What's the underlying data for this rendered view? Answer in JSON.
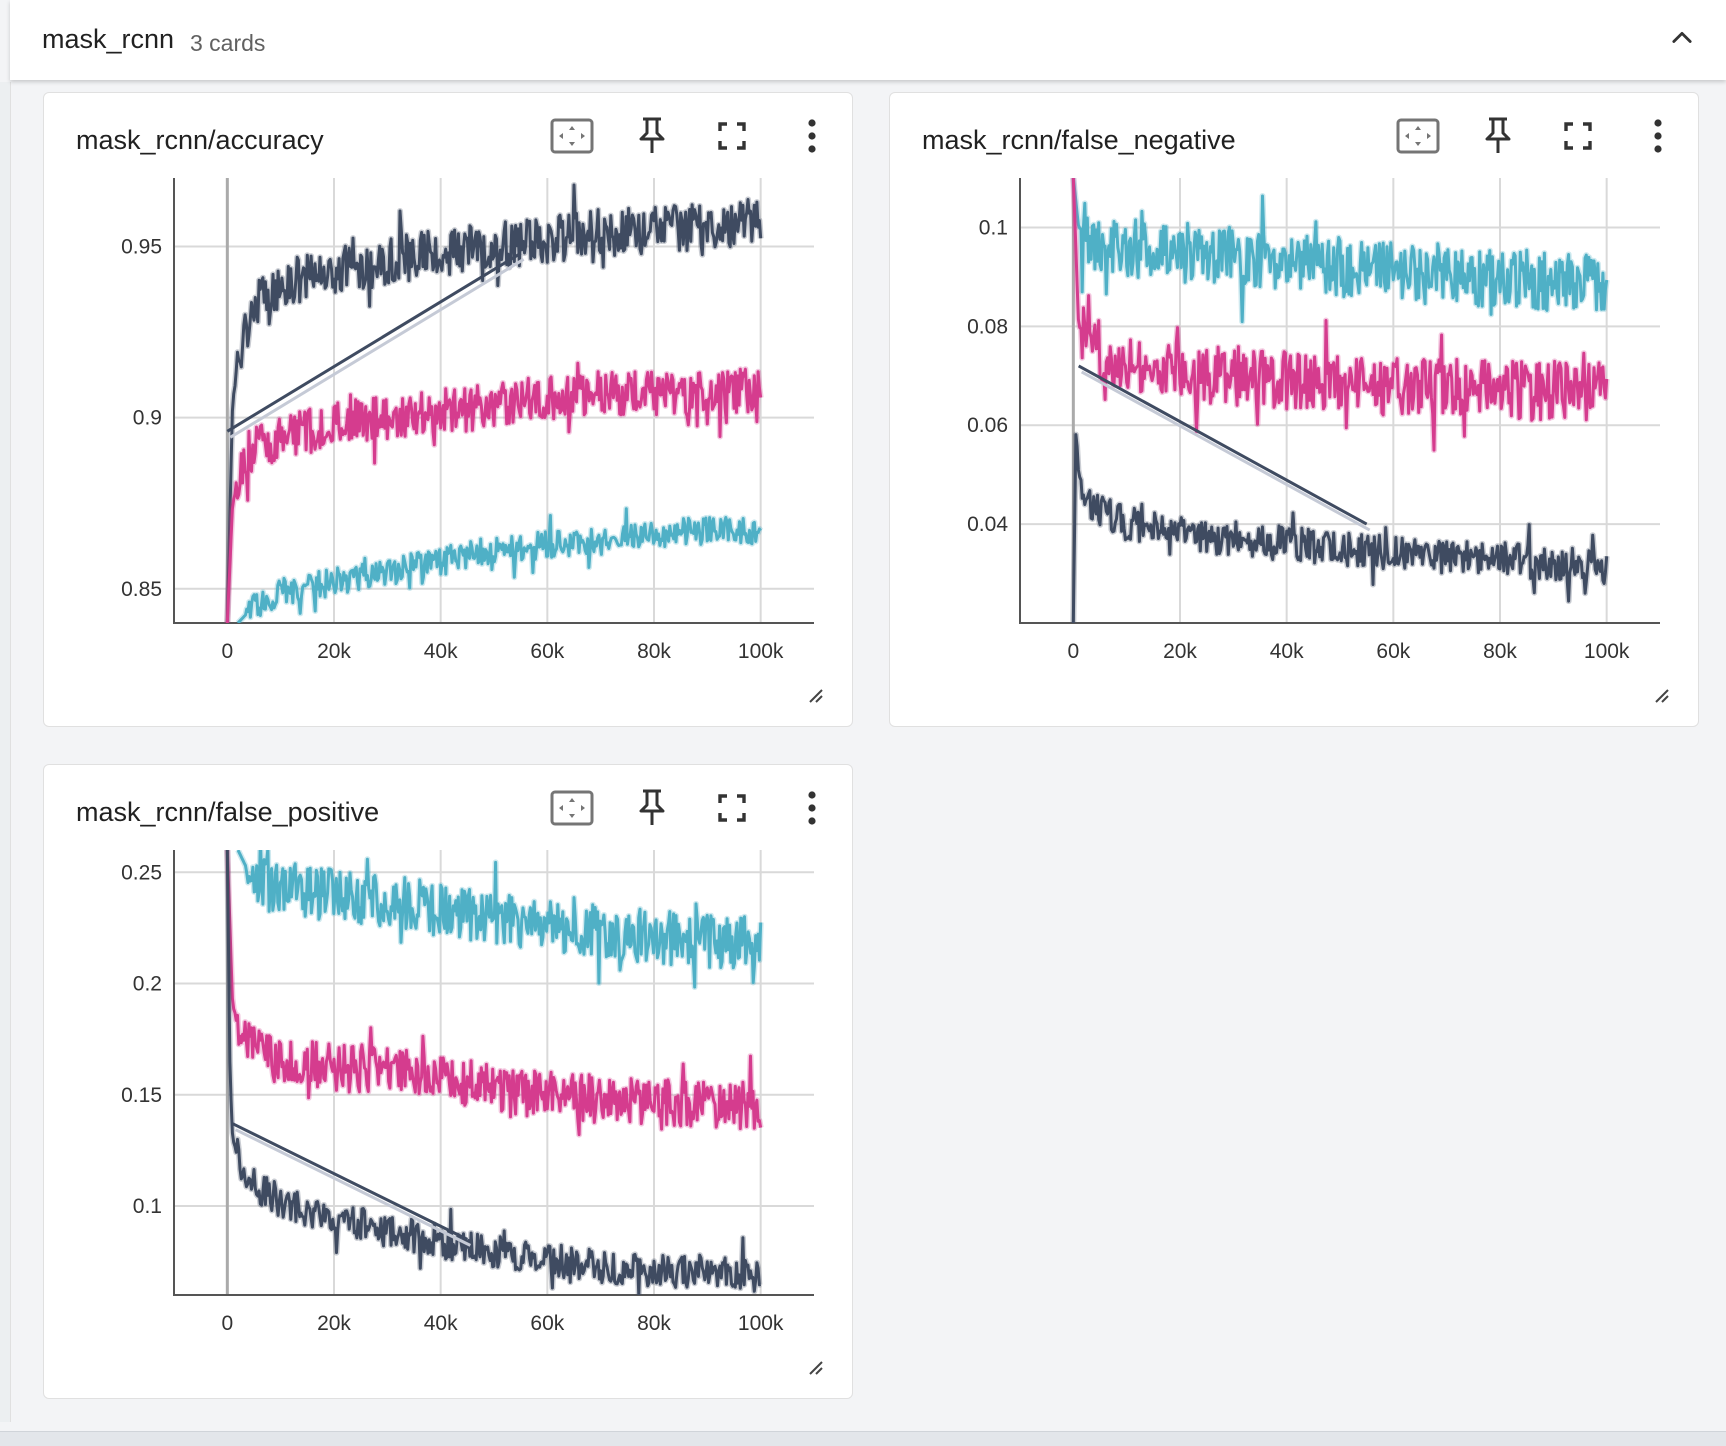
{
  "group": {
    "title": "mask_rcnn",
    "count_label": "3 cards",
    "collapse_icon": "chevron-up-icon"
  },
  "colors": {
    "series_dark": "#3f4b61",
    "series_pink": "#d53c8e",
    "series_cyan": "#4fb0c6",
    "grid": "#d9d9d9",
    "axis": "#555555",
    "tick_text": "#333333"
  },
  "cards": [
    {
      "title": "mask_rcnn/accuracy",
      "tools": [
        "fit-domain-icon",
        "pin-icon",
        "fullscreen-icon",
        "more-vert-icon"
      ],
      "chart_data": {
        "type": "line",
        "x_ticks": [
          "0",
          "20k",
          "40k",
          "60k",
          "80k",
          "100k"
        ],
        "y_ticks": [
          "0.85",
          "0.9",
          "0.95"
        ],
        "xlim": [
          -10000,
          110000
        ],
        "ylim": [
          0.84,
          0.97
        ],
        "grid": true,
        "series": [
          {
            "color": "#3f4b61",
            "x": [
              0,
              1000,
              3000,
              6000,
              10000,
              15000,
              20000,
              30000,
              40000,
              50000,
              60000,
              70000,
              80000,
              90000,
              100000
            ],
            "y": [
              0.84,
              0.905,
              0.925,
              0.935,
              0.938,
              0.941,
              0.943,
              0.946,
              0.948,
              0.95,
              0.952,
              0.954,
              0.955,
              0.956,
              0.957
            ],
            "noise": 0.007,
            "interp_line": [
              [
                0,
                0.896
              ],
              [
                55000,
                0.948
              ]
            ]
          },
          {
            "color": "#d53c8e",
            "x": [
              0,
              1000,
              3000,
              6000,
              10000,
              15000,
              20000,
              30000,
              40000,
              50000,
              60000,
              70000,
              80000,
              90000,
              100000
            ],
            "y": [
              0.84,
              0.875,
              0.887,
              0.892,
              0.894,
              0.896,
              0.898,
              0.9,
              0.902,
              0.904,
              0.906,
              0.907,
              0.907,
              0.907,
              0.908
            ],
            "noise": 0.0065
          },
          {
            "color": "#4fb0c6",
            "x": [
              2000,
              5000,
              10000,
              20000,
              30000,
              40000,
              50000,
              60000,
              70000,
              80000,
              90000,
              100000
            ],
            "y": [
              0.84,
              0.845,
              0.849,
              0.852,
              0.855,
              0.858,
              0.861,
              0.863,
              0.864,
              0.866,
              0.867,
              0.867
            ],
            "noise": 0.004
          }
        ]
      }
    },
    {
      "title": "mask_rcnn/false_negative",
      "tools": [
        "fit-domain-icon",
        "pin-icon",
        "fullscreen-icon",
        "more-vert-icon"
      ],
      "chart_data": {
        "type": "line",
        "x_ticks": [
          "0",
          "20k",
          "40k",
          "60k",
          "80k",
          "100k"
        ],
        "y_ticks": [
          "0.04",
          "0.06",
          "0.08",
          "0.1"
        ],
        "xlim": [
          -10000,
          110000
        ],
        "ylim": [
          0.02,
          0.11
        ],
        "grid": true,
        "series": [
          {
            "color": "#4fb0c6",
            "x": [
              0,
              1000,
              5000,
              10000,
              20000,
              30000,
              40000,
              50000,
              60000,
              70000,
              80000,
              90000,
              100000
            ],
            "y": [
              0.11,
              0.1,
              0.097,
              0.096,
              0.095,
              0.094,
              0.093,
              0.092,
              0.091,
              0.09,
              0.09,
              0.089,
              0.089
            ],
            "noise": 0.006
          },
          {
            "color": "#d53c8e",
            "x": [
              0,
              1000,
              5000,
              10000,
              20000,
              30000,
              40000,
              50000,
              60000,
              70000,
              80000,
              90000,
              100000
            ],
            "y": [
              0.11,
              0.08,
              0.075,
              0.073,
              0.071,
              0.07,
              0.069,
              0.068,
              0.068,
              0.068,
              0.067,
              0.067,
              0.067
            ],
            "noise": 0.006
          },
          {
            "color": "#3f4b61",
            "x": [
              0,
              500,
              1000,
              3000,
              6000,
              10000,
              20000,
              30000,
              40000,
              50000,
              60000,
              70000,
              80000,
              90000,
              100000
            ],
            "y": [
              0.02,
              0.06,
              0.05,
              0.045,
              0.042,
              0.04,
              0.038,
              0.037,
              0.036,
              0.035,
              0.034,
              0.033,
              0.033,
              0.032,
              0.031
            ],
            "noise": 0.0035,
            "interp_line": [
              [
                1000,
                0.072
              ],
              [
                55000,
                0.04
              ]
            ]
          }
        ]
      }
    },
    {
      "title": "mask_rcnn/false_positive",
      "tools": [
        "fit-domain-icon",
        "pin-icon",
        "fullscreen-icon",
        "more-vert-icon"
      ],
      "chart_data": {
        "type": "line",
        "x_ticks": [
          "0",
          "20k",
          "40k",
          "60k",
          "80k",
          "100k"
        ],
        "y_ticks": [
          "0.1",
          "0.15",
          "0.2",
          "0.25"
        ],
        "xlim": [
          -10000,
          110000
        ],
        "ylim": [
          0.06,
          0.26
        ],
        "grid": true,
        "series": [
          {
            "color": "#4fb0c6",
            "x": [
              2000,
              5000,
              10000,
              20000,
              30000,
              40000,
              50000,
              60000,
              70000,
              80000,
              90000,
              100000
            ],
            "y": [
              0.26,
              0.245,
              0.243,
              0.24,
              0.237,
              0.233,
              0.23,
              0.226,
              0.223,
              0.221,
              0.219,
              0.218
            ],
            "noise": 0.012
          },
          {
            "color": "#d53c8e",
            "x": [
              0,
              1000,
              3000,
              6000,
              10000,
              20000,
              30000,
              40000,
              50000,
              60000,
              70000,
              80000,
              90000,
              100000
            ],
            "y": [
              0.26,
              0.19,
              0.175,
              0.168,
              0.165,
              0.162,
              0.16,
              0.157,
              0.153,
              0.15,
              0.148,
              0.147,
              0.146,
              0.145
            ],
            "noise": 0.011
          },
          {
            "color": "#3f4b61",
            "x": [
              0,
              500,
              1000,
              3000,
              6000,
              10000,
              20000,
              30000,
              40000,
              50000,
              60000,
              70000,
              80000,
              90000,
              100000
            ],
            "y": [
              0.26,
              0.16,
              0.13,
              0.115,
              0.108,
              0.102,
              0.095,
              0.089,
              0.084,
              0.08,
              0.076,
              0.073,
              0.071,
              0.07,
              0.069
            ],
            "noise": 0.0075,
            "interp_line": [
              [
                1000,
                0.137
              ],
              [
                45000,
                0.085
              ]
            ]
          }
        ]
      }
    }
  ]
}
